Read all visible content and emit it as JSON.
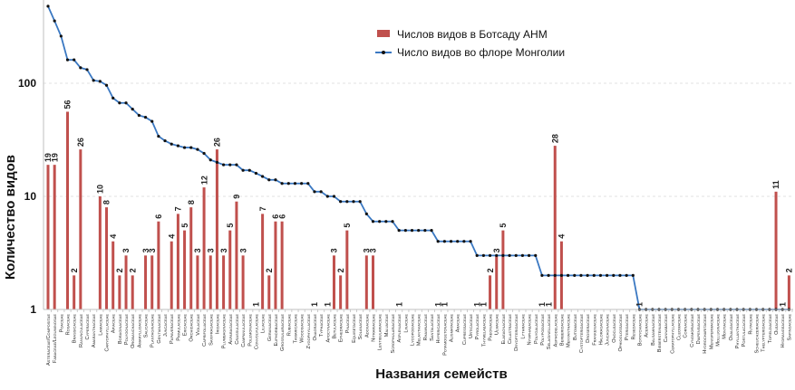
{
  "chart_data": {
    "type": "bar+line",
    "xlabel": "Названия семейств",
    "ylabel": "Количество видов",
    "yscale": "log",
    "ylim": [
      1,
      500
    ],
    "yticks": [
      "1",
      "10",
      "100"
    ],
    "grid": "horizontal dashed",
    "legend_position": "top-center",
    "colors": {
      "bars": "#c0504d",
      "line": "#3a78c2",
      "markers": "#111111"
    },
    "categories": [
      "Asteraceae/Compositae",
      "Fabaceae/Leguminosae",
      "Poaceae",
      "Rosaceae",
      "Brassicaceae",
      "Ranunculaceae",
      "Cyperaceae",
      "Amaranthaceae",
      "Lamiaceae",
      "Caryophyllaceae",
      "Apiaceae",
      "Boraginaceae",
      "Polygonaceae",
      "Orobanchaceae",
      "Amaryllidaceae",
      "Salicaceae",
      "Plantaginaceae",
      "Gentianaceae",
      "Juncaceae",
      "Papaveraceae",
      "Primulaceae",
      "Ericaceae",
      "Orchidaceae",
      "Violaceae",
      "Caprifoliaceae",
      "Saxifragaceae",
      "Iridaceae",
      "Plumbaginaceae",
      "Asparagaceae",
      "Crassulaceae",
      "Campanulaceae",
      "Polemoniaceae",
      "Convolvulaceae",
      "Liliaceae",
      "Geraniaceae",
      "Euphorbiaceae",
      "Grossulariaceae",
      "Rubiaceae",
      "Tamaricaceae",
      "Woodsiaceae",
      "Zygophyllaceae",
      "Onagraceae",
      "Typhaceae",
      "Apocynaceae",
      "Betulaceae",
      "Ephedraceae",
      "Pinaceae",
      "Equisetaceae",
      "Solanaceae",
      "Adoxaceae",
      "Nitrariaceae",
      "Lentibulariaceae",
      "Malvaceae",
      "Scrophulariaceae",
      "Aspleniaceae",
      "Linaceae",
      "Lycopodiaceae",
      "Melanthiaceae",
      "Rhamnaceae",
      "Santalaceae",
      "Hypericaceae",
      "Potamogetonaceae",
      "Alismataceae",
      "Araceae",
      "Cupressaceae",
      "Urticaceae",
      "Pyrolaceae",
      "Thymelaeaceae",
      "Paeoniaceae",
      "Ulmaceae",
      "Elaeagnaceae",
      "Celastraceae",
      "Dryopteridaceae",
      "Lythraceae",
      "Nymphaeaceae",
      "Polygalaceae",
      "Polypodiaceae",
      "Selaginellaceae",
      "Asphodelaceae",
      "Berberidaceae",
      "Menyanthaceae",
      "Butomaceae",
      "Cystopteridaceae",
      "Droseraceae",
      "Frankeniaceae",
      "Haloragaceae",
      "Juncaginaceae",
      "Onocleaceae",
      "Ophioglossaceae",
      "Pteridaceae",
      "Resedaceae",
      "Botrychiaceae",
      "Aceraceae",
      "Balsaminaceae",
      "Biebersteiniaceae",
      "Cannabaceae",
      "Ceratophyllaceae",
      "Cleomaceae",
      "Cornaceae",
      "Cynomoriaceae",
      "Diapensiaceae",
      "Hydrocharitaceae",
      "Menispermaceae",
      "Molluginaceae",
      "Montiaceae",
      "Oxalidaceae",
      "Phyllanthaceae",
      "Portulacaceae",
      "Rutaceae",
      "Scheuchzeriaceae",
      "Thelypteridaceae",
      "Tofieldiaceae",
      "Oleaceae",
      "Hydrangeaceae",
      "Sapindaceae"
    ],
    "series": [
      {
        "name": "Числов видов в Ботсаду АНМ",
        "type": "bar",
        "values": [
          19,
          19,
          null,
          56,
          2,
          26,
          null,
          null,
          10,
          8,
          4,
          2,
          3,
          2,
          null,
          3,
          3,
          6,
          null,
          4,
          7,
          5,
          8,
          3,
          12,
          3,
          26,
          3,
          5,
          9,
          3,
          null,
          1,
          7,
          2,
          6,
          6,
          null,
          null,
          null,
          null,
          1,
          null,
          1,
          3,
          2,
          5,
          null,
          null,
          3,
          3,
          null,
          null,
          null,
          1,
          null,
          null,
          null,
          null,
          null,
          1,
          1,
          null,
          null,
          null,
          null,
          1,
          1,
          2,
          3,
          5,
          null,
          null,
          null,
          null,
          null,
          1,
          1,
          28,
          4,
          null,
          null,
          null,
          null,
          null,
          null,
          null,
          null,
          null,
          null,
          null,
          1,
          null,
          null,
          null,
          null,
          null,
          null,
          null,
          null,
          null,
          null,
          null,
          null,
          null,
          null,
          null,
          null,
          null,
          null,
          null,
          null,
          11,
          1,
          2
        ]
      },
      {
        "name": "Число видов во флоре Монголии",
        "type": "line",
        "values": [
          480,
          356,
          261,
          161,
          161,
          137,
          132,
          106,
          104,
          96,
          74,
          67,
          67,
          59,
          52,
          50,
          46,
          34,
          31,
          29,
          28,
          27,
          27,
          26,
          24,
          21,
          20,
          19,
          19,
          19,
          17,
          17,
          16,
          15,
          14,
          14,
          13,
          13,
          13,
          13,
          13,
          11,
          11,
          10,
          10,
          9,
          9,
          9,
          9,
          7,
          6,
          6,
          6,
          6,
          5,
          5,
          5,
          5,
          5,
          5,
          4,
          4,
          4,
          4,
          4,
          4,
          3,
          3,
          3,
          3,
          3,
          3,
          3,
          3,
          3,
          3,
          2,
          2,
          2,
          2,
          2,
          2,
          2,
          2,
          2,
          2,
          2,
          2,
          2,
          2,
          2,
          1,
          1,
          1,
          1,
          1,
          1,
          1,
          1,
          1,
          1,
          1,
          1,
          1,
          1,
          1,
          1,
          1,
          1,
          1,
          1,
          1,
          1,
          1,
          1
        ]
      }
    ]
  }
}
